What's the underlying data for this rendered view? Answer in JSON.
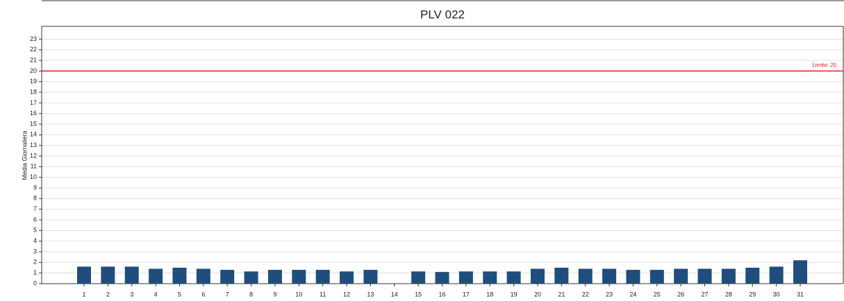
{
  "chart_data": {
    "type": "bar",
    "title": "PLV 022",
    "y_label": "Media Giornaliera",
    "categories": [
      "1",
      "2",
      "3",
      "4",
      "5",
      "6",
      "7",
      "8",
      "9",
      "10",
      "11",
      "12",
      "13",
      "14",
      "15",
      "16",
      "17",
      "18",
      "19",
      "20",
      "21",
      "22",
      "23",
      "24",
      "25",
      "26",
      "27",
      "28",
      "29",
      "30",
      "31"
    ],
    "values": [
      1.6,
      1.6,
      1.6,
      1.4,
      1.5,
      1.4,
      1.3,
      1.15,
      1.3,
      1.3,
      1.3,
      1.15,
      1.3,
      null,
      1.15,
      1.1,
      1.15,
      1.15,
      1.15,
      1.4,
      1.5,
      1.4,
      1.4,
      1.3,
      1.3,
      1.4,
      1.4,
      1.4,
      1.5,
      1.6,
      2.2
    ],
    "color": "#1f4e7c",
    "ylim": [
      0,
      24.2
    ],
    "yticks": [
      0,
      1,
      2,
      3,
      4,
      5,
      6,
      7,
      8,
      9,
      10,
      11,
      12,
      13,
      14,
      15,
      16,
      17,
      18,
      19,
      20,
      21,
      22,
      23
    ],
    "grid": true,
    "threshold": {
      "value": 20,
      "label": "Limite: 20",
      "color": "#e02020"
    }
  }
}
